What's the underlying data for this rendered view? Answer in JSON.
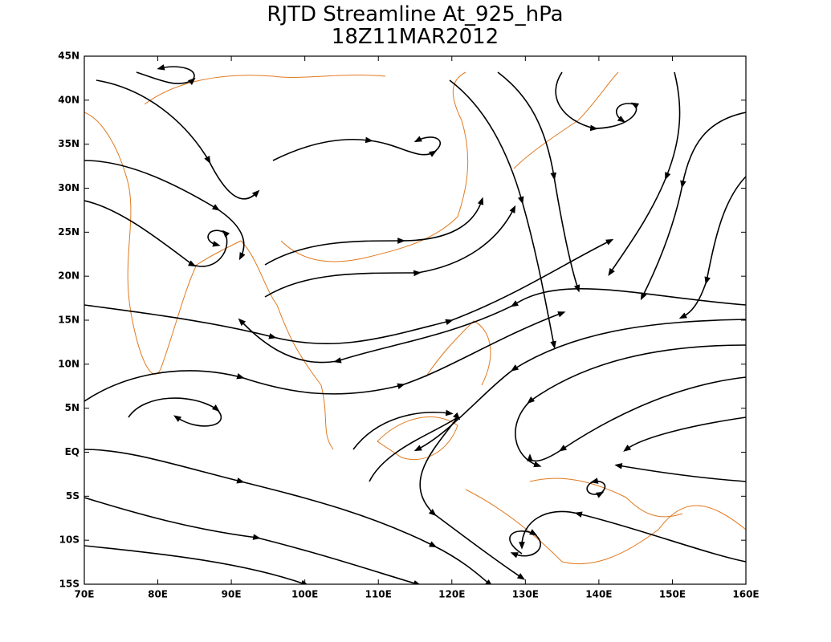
{
  "header": {
    "title": "RJTD Streamline At_925_hPa",
    "subtitle": "18Z11MAR2012"
  },
  "axes": {
    "xlim": [
      70,
      160
    ],
    "ylim": [
      -15,
      45
    ],
    "xticks": [
      {
        "value": 70,
        "label": "70E"
      },
      {
        "value": 80,
        "label": "80E"
      },
      {
        "value": 90,
        "label": "90E"
      },
      {
        "value": 100,
        "label": "100E"
      },
      {
        "value": 110,
        "label": "110E"
      },
      {
        "value": 120,
        "label": "120E"
      },
      {
        "value": 130,
        "label": "130E"
      },
      {
        "value": 140,
        "label": "140E"
      },
      {
        "value": 150,
        "label": "150E"
      },
      {
        "value": 160,
        "label": "160E"
      }
    ],
    "yticks": [
      {
        "value": 45,
        "label": "45N"
      },
      {
        "value": 40,
        "label": "40N"
      },
      {
        "value": 35,
        "label": "35N"
      },
      {
        "value": 30,
        "label": "30N"
      },
      {
        "value": 25,
        "label": "25N"
      },
      {
        "value": 20,
        "label": "20N"
      },
      {
        "value": 15,
        "label": "15N"
      },
      {
        "value": 10,
        "label": "10N"
      },
      {
        "value": 5,
        "label": "5N"
      },
      {
        "value": 0,
        "label": "EQ"
      },
      {
        "value": -5,
        "label": "5S"
      },
      {
        "value": -10,
        "label": "10S"
      },
      {
        "value": -15,
        "label": "15S"
      }
    ]
  }
}
